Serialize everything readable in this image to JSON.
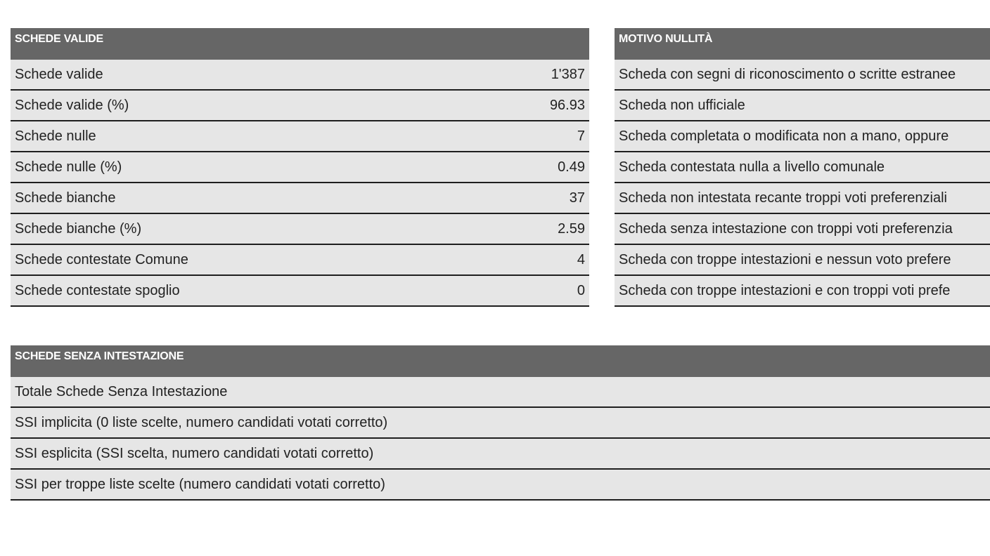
{
  "schede_valide": {
    "header": "SCHEDE VALIDE",
    "rows": [
      {
        "label": "Schede valide",
        "value": "1'387"
      },
      {
        "label": "Schede valide (%)",
        "value": "96.93"
      },
      {
        "label": "Schede nulle",
        "value": "7"
      },
      {
        "label": "Schede nulle (%)",
        "value": "0.49"
      },
      {
        "label": "Schede bianche",
        "value": "37"
      },
      {
        "label": "Schede bianche (%)",
        "value": "2.59"
      },
      {
        "label": "Schede contestate Comune",
        "value": "4"
      },
      {
        "label": "Schede contestate spoglio",
        "value": "0"
      }
    ]
  },
  "motivo_nullita": {
    "header": "MOTIVO NULLITÀ",
    "rows": [
      {
        "label": "Scheda con segni di riconoscimento o scritte estranee"
      },
      {
        "label": "Scheda non ufficiale"
      },
      {
        "label": "Scheda completata o modificata non a mano, oppure"
      },
      {
        "label": "Scheda contestata nulla a livello comunale"
      },
      {
        "label": "Scheda non intestata recante troppi voti preferenziali"
      },
      {
        "label": "Scheda senza intestazione con troppi voti preferenzia"
      },
      {
        "label": "Scheda con troppe intestazioni e nessun voto prefere"
      },
      {
        "label": "Scheda con troppe intestazioni e con troppi voti prefe"
      }
    ]
  },
  "schede_senza_intestazione": {
    "header": "SCHEDE SENZA INTESTAZIONE",
    "rows": [
      {
        "label": "Totale Schede Senza Intestazione"
      },
      {
        "label": "SSI implicita (0 liste scelte, numero candidati votati corretto)"
      },
      {
        "label": "SSI esplicita (SSI scelta, numero candidati votati corretto)"
      },
      {
        "label": "SSI per troppe liste scelte (numero candidati votati corretto)"
      }
    ]
  }
}
